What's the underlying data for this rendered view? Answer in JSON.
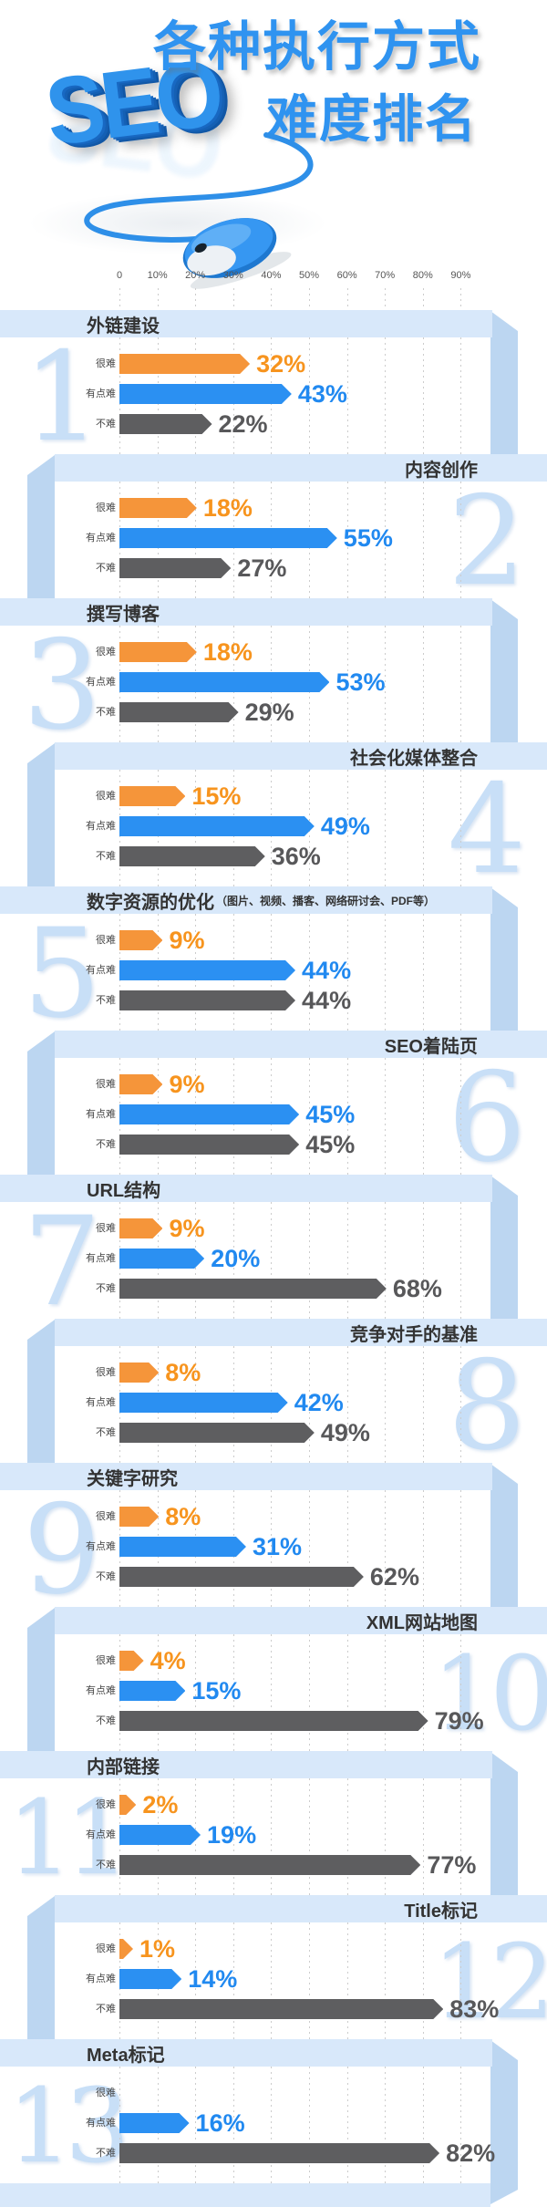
{
  "header": {
    "title_line1": "各种执行方式",
    "title_line2": "难度排名",
    "wordmark": "SEO"
  },
  "axis_labels": [
    "0",
    "10%",
    "20%",
    "30%",
    "40%",
    "50%",
    "60%",
    "70%",
    "80%",
    "90%"
  ],
  "row_labels": {
    "hard": "很难",
    "medium": "有点难",
    "easy": "不难"
  },
  "colors": {
    "hard_bar": "#F5953A",
    "hard_text": "#F7941E",
    "medium_bar": "#2B90F2",
    "medium_text": "#2189F0",
    "easy_bar": "#5E5E60",
    "easy_text": "#58585A",
    "ribbon_band": "#D8E8FA",
    "ribbon_fold": "#BCD6F1",
    "rank_number": "#C8DFF7",
    "title_blue": "#2F93F0",
    "grid_line": "#CCCCCC",
    "header_text": "#333333",
    "axis_text": "#555555",
    "label_text": "#444444"
  },
  "sections": [
    {
      "rank": "1",
      "title": "外链建设",
      "note": "",
      "side": "left",
      "hard": 32,
      "medium": 43,
      "easy": 22,
      "hard_label": "32%",
      "medium_label": "43%",
      "easy_label": "22%"
    },
    {
      "rank": "2",
      "title": "内容创作",
      "note": "",
      "side": "right",
      "hard": 18,
      "medium": 55,
      "easy": 27,
      "hard_label": "18%",
      "medium_label": "55%",
      "easy_label": "27%"
    },
    {
      "rank": "3",
      "title": "撰写博客",
      "note": "",
      "side": "left",
      "hard": 18,
      "medium": 53,
      "easy": 29,
      "hard_label": "18%",
      "medium_label": "53%",
      "easy_label": "29%"
    },
    {
      "rank": "4",
      "title": "社会化媒体整合",
      "note": "",
      "side": "right",
      "hard": 15,
      "medium": 49,
      "easy": 36,
      "hard_label": "15%",
      "medium_label": "49%",
      "easy_label": "36%"
    },
    {
      "rank": "5",
      "title": "数字资源的优化",
      "note": "（图片、视频、播客、网络研讨会、PDF等）",
      "side": "left",
      "hard": 9,
      "medium": 44,
      "easy": 44,
      "hard_label": "9%",
      "medium_label": "44%",
      "easy_label": "44%"
    },
    {
      "rank": "6",
      "title": "SEO着陆页",
      "note": "",
      "side": "right",
      "hard": 9,
      "medium": 45,
      "easy": 45,
      "hard_label": "9%",
      "medium_label": "45%",
      "easy_label": "45%"
    },
    {
      "rank": "7",
      "title": "URL结构",
      "note": "",
      "side": "left",
      "hard": 9,
      "medium": 20,
      "easy": 68,
      "hard_label": "9%",
      "medium_label": "20%",
      "easy_label": "68%"
    },
    {
      "rank": "8",
      "title": "竞争对手的基准",
      "note": "",
      "side": "right",
      "hard": 8,
      "medium": 42,
      "easy": 49,
      "hard_label": "8%",
      "medium_label": "42%",
      "easy_label": "49%"
    },
    {
      "rank": "9",
      "title": "关键字研究",
      "note": "",
      "side": "left",
      "hard": 8,
      "medium": 31,
      "easy": 62,
      "hard_label": "8%",
      "medium_label": "31%",
      "easy_label": "62%"
    },
    {
      "rank": "10",
      "title": "XML网站地图",
      "note": "",
      "side": "right",
      "hard": 4,
      "medium": 15,
      "easy": 79,
      "hard_label": "4%",
      "medium_label": "15%",
      "easy_label": "79%"
    },
    {
      "rank": "11",
      "title": "内部链接",
      "note": "",
      "side": "left",
      "hard": 2,
      "medium": 19,
      "easy": 77,
      "hard_label": "2%",
      "medium_label": "19%",
      "easy_label": "77%"
    },
    {
      "rank": "12",
      "title": "Title标记",
      "note": "",
      "side": "right",
      "hard": 1,
      "medium": 14,
      "easy": 83,
      "hard_label": "1%",
      "medium_label": "14%",
      "easy_label": "83%"
    },
    {
      "rank": "13",
      "title": "Meta标记",
      "note": "",
      "side": "left",
      "hard": null,
      "medium": 16,
      "easy": 82,
      "hard_label": "",
      "medium_label": "16%",
      "easy_label": "82%"
    }
  ],
  "chart_data": {
    "type": "bar",
    "orientation": "horizontal",
    "title": "各种执行方式 SEO 难度排名",
    "categories": [
      "外链建设",
      "内容创作",
      "撰写博客",
      "社会化媒体整合",
      "数字资源的优化（图片、视频、播客、网络研讨会、PDF等）",
      "SEO着陆页",
      "URL结构",
      "竞争对手的基准",
      "关键字研究",
      "XML网站地图",
      "内部链接",
      "Title标记",
      "Meta标记"
    ],
    "series": [
      {
        "name": "很难",
        "color": "#F5953A",
        "values": [
          32,
          18,
          18,
          15,
          9,
          9,
          9,
          8,
          8,
          4,
          2,
          1,
          null
        ]
      },
      {
        "name": "有点难",
        "color": "#2B90F2",
        "values": [
          43,
          55,
          53,
          49,
          44,
          45,
          20,
          42,
          31,
          15,
          19,
          14,
          16
        ]
      },
      {
        "name": "不难",
        "color": "#5E5E60",
        "values": [
          22,
          27,
          29,
          36,
          44,
          45,
          68,
          49,
          62,
          79,
          77,
          83,
          82
        ]
      }
    ],
    "xlabel": "",
    "ylabel": "",
    "axis_range": [
      0,
      90
    ],
    "axis_ticks": [
      "0",
      "10%",
      "20%",
      "30%",
      "40%",
      "50%",
      "60%",
      "70%",
      "80%",
      "90%"
    ],
    "grid": "dashed-vertical",
    "value_suffix": "%"
  }
}
